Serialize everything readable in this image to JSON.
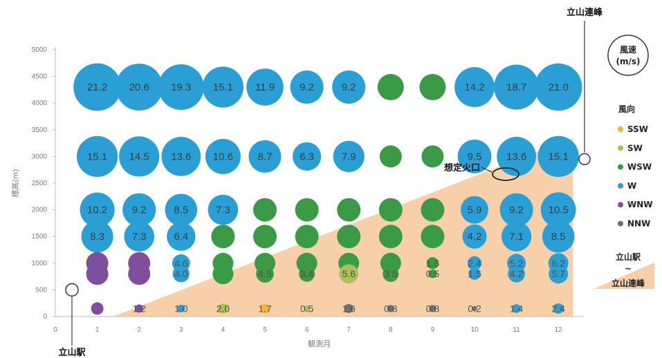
{
  "chart_data": {
    "type": "scatter",
    "xlabel": "観測月",
    "ylabel": "標高(m)",
    "x_ticks": [
      "0",
      "1",
      "2",
      "3",
      "4",
      "5",
      "6",
      "7",
      "8",
      "9",
      "10",
      "11",
      "12"
    ],
    "y_ticks": [
      "0",
      "500",
      "1000",
      "1500",
      "2000",
      "2500",
      "3000",
      "3500",
      "4000",
      "4500",
      "5000"
    ],
    "xlim": [
      0,
      12.6
    ],
    "ylim": [
      0,
      5000
    ],
    "grid": false,
    "legend": {
      "title": "風向",
      "size_title": "風速",
      "size_unit": "(m/s)",
      "entries": [
        {
          "label": "SSW",
          "color": "#f5b731"
        },
        {
          "label": "SW",
          "color": "#a8c256"
        },
        {
          "label": "WSW",
          "color": "#3a9a45"
        },
        {
          "label": "W",
          "color": "#2a9fd6"
        },
        {
          "label": "WNW",
          "color": "#7d4f9d"
        },
        {
          "label": "NNW",
          "color": "#707070"
        }
      ],
      "terrain_label_top": "立山駅",
      "terrain_label_mid": "~",
      "terrain_label_bottom": "立山連峰"
    },
    "annotations": {
      "station": "立山駅",
      "peaks": "立山連峰",
      "crater": "想定火口"
    },
    "levels": [
      {
        "altitude": 4300,
        "points": [
          {
            "month": 1,
            "speed": "21.2",
            "dir": "W"
          },
          {
            "month": 2,
            "speed": "20.6",
            "dir": "W"
          },
          {
            "month": 3,
            "speed": "19.3",
            "dir": "W"
          },
          {
            "month": 4,
            "speed": "15.1",
            "dir": "W"
          },
          {
            "month": 5,
            "speed": "11.9",
            "dir": "W"
          },
          {
            "month": 6,
            "speed": "9.2",
            "dir": "W"
          },
          {
            "month": 7,
            "speed": "9.2",
            "dir": "W"
          },
          {
            "month": 8,
            "speed": "",
            "dir": "WSW"
          },
          {
            "month": 9,
            "speed": "",
            "dir": "WSW"
          },
          {
            "month": 10,
            "speed": "14.2",
            "dir": "W"
          },
          {
            "month": 11,
            "speed": "18.7",
            "dir": "W"
          },
          {
            "month": 12,
            "speed": "21.0",
            "dir": "W"
          }
        ]
      },
      {
        "altitude": 3000,
        "points": [
          {
            "month": 1,
            "speed": "15.1",
            "dir": "W"
          },
          {
            "month": 2,
            "speed": "14.5",
            "dir": "W"
          },
          {
            "month": 3,
            "speed": "13.6",
            "dir": "W"
          },
          {
            "month": 4,
            "speed": "10.6",
            "dir": "W"
          },
          {
            "month": 5,
            "speed": "8.7",
            "dir": "W"
          },
          {
            "month": 6,
            "speed": "6.3",
            "dir": "W"
          },
          {
            "month": 7,
            "speed": "7.9",
            "dir": "W"
          },
          {
            "month": 8,
            "speed": "",
            "dir": "WSW"
          },
          {
            "month": 9,
            "speed": "",
            "dir": "WSW"
          },
          {
            "month": 10,
            "speed": "9.5",
            "dir": "W"
          },
          {
            "month": 11,
            "speed": "13.6",
            "dir": "W"
          },
          {
            "month": 12,
            "speed": "15.1",
            "dir": "W"
          }
        ]
      },
      {
        "altitude": 2000,
        "points": [
          {
            "month": 1,
            "speed": "10.2",
            "dir": "W"
          },
          {
            "month": 2,
            "speed": "9.2",
            "dir": "W"
          },
          {
            "month": 3,
            "speed": "8.5",
            "dir": "W"
          },
          {
            "month": 4,
            "speed": "7.3",
            "dir": "W"
          },
          {
            "month": 5,
            "speed": "",
            "dir": "WSW"
          },
          {
            "month": 6,
            "speed": "",
            "dir": "WSW"
          },
          {
            "month": 7,
            "speed": "",
            "dir": "WSW"
          },
          {
            "month": 8,
            "speed": "",
            "dir": "WSW"
          },
          {
            "month": 9,
            "speed": "",
            "dir": "WSW"
          },
          {
            "month": 10,
            "speed": "5.9",
            "dir": "W"
          },
          {
            "month": 11,
            "speed": "9.2",
            "dir": "W"
          },
          {
            "month": 12,
            "speed": "10.5",
            "dir": "W"
          }
        ]
      },
      {
        "altitude": 1500,
        "points": [
          {
            "month": 1,
            "speed": "8.3",
            "dir": "W"
          },
          {
            "month": 2,
            "speed": "7.3",
            "dir": "W"
          },
          {
            "month": 3,
            "speed": "6.4",
            "dir": "W"
          },
          {
            "month": 4,
            "speed": "",
            "dir": "WSW"
          },
          {
            "month": 5,
            "speed": "",
            "dir": "WSW"
          },
          {
            "month": 6,
            "speed": "",
            "dir": "WSW"
          },
          {
            "month": 7,
            "speed": "",
            "dir": "WSW"
          },
          {
            "month": 8,
            "speed": "",
            "dir": "WSW"
          },
          {
            "month": 9,
            "speed": "",
            "dir": "WSW"
          },
          {
            "month": 10,
            "speed": "4.2",
            "dir": "W"
          },
          {
            "month": 11,
            "speed": "7.1",
            "dir": "W"
          },
          {
            "month": 12,
            "speed": "8.5",
            "dir": "W"
          }
        ]
      },
      {
        "altitude": 1000,
        "points": [
          {
            "month": 1,
            "speed": "",
            "dir": "WNW"
          },
          {
            "month": 2,
            "speed": "",
            "dir": "WNW"
          },
          {
            "month": 3,
            "speed": "4.6",
            "dir": "W"
          },
          {
            "month": 4,
            "speed": "",
            "dir": "WSW"
          },
          {
            "month": 5,
            "speed": "",
            "dir": "WSW"
          },
          {
            "month": 6,
            "speed": "",
            "dir": "WSW"
          },
          {
            "month": 7,
            "speed": "",
            "dir": "WSW"
          },
          {
            "month": 8,
            "speed": "",
            "dir": "WSW"
          },
          {
            "month": 9,
            "speed": "1.5",
            "dir": "WSW"
          },
          {
            "month": 10,
            "speed": "2.4",
            "dir": "W"
          },
          {
            "month": 11,
            "speed": "5.2",
            "dir": "W"
          },
          {
            "month": 12,
            "speed": "6.2",
            "dir": "W"
          }
        ]
      },
      {
        "altitude": 800,
        "points": [
          {
            "month": 1,
            "speed": "",
            "dir": "WNW"
          },
          {
            "month": 2,
            "speed": "",
            "dir": "WNW"
          },
          {
            "month": 3,
            "speed": "4.0",
            "dir": "W"
          },
          {
            "month": 4,
            "speed": "",
            "dir": "WSW"
          },
          {
            "month": 5,
            "speed": "4.5",
            "dir": "WSW"
          },
          {
            "month": 6,
            "speed": "3.4",
            "dir": "WSW"
          },
          {
            "month": 7,
            "speed": "5.6",
            "dir": "SW"
          },
          {
            "month": 8,
            "speed": "3.5",
            "dir": "WSW"
          },
          {
            "month": 9,
            "speed": "0.5",
            "dir": "WSW"
          },
          {
            "month": 10,
            "speed": "1.5",
            "dir": "W"
          },
          {
            "month": 11,
            "speed": "4.2",
            "dir": "W"
          },
          {
            "month": 12,
            "speed": "5.7",
            "dir": "W"
          }
        ]
      },
      {
        "altitude": 150,
        "points": [
          {
            "month": 1,
            "speed": "",
            "dir": "WNW"
          },
          {
            "month": 2,
            "speed": "1.2",
            "dir": "WNW"
          },
          {
            "month": 3,
            "speed": "1.0",
            "dir": "W"
          },
          {
            "month": 4,
            "speed": "2.0",
            "dir": "SW"
          },
          {
            "month": 5,
            "speed": "1.7",
            "dir": "SSW"
          },
          {
            "month": 6,
            "speed": "0.5",
            "dir": "SW"
          },
          {
            "month": 7,
            "speed": "1.6",
            "dir": "NNW"
          },
          {
            "month": 8,
            "speed": "0.8",
            "dir": "NNW"
          },
          {
            "month": 9,
            "speed": "0.8",
            "dir": "NNW"
          },
          {
            "month": 10,
            "speed": "0.2",
            "dir": "NNW"
          },
          {
            "month": 11,
            "speed": "1.4",
            "dir": "W"
          },
          {
            "month": 12,
            "speed": "2.4",
            "dir": "W"
          }
        ]
      }
    ]
  }
}
